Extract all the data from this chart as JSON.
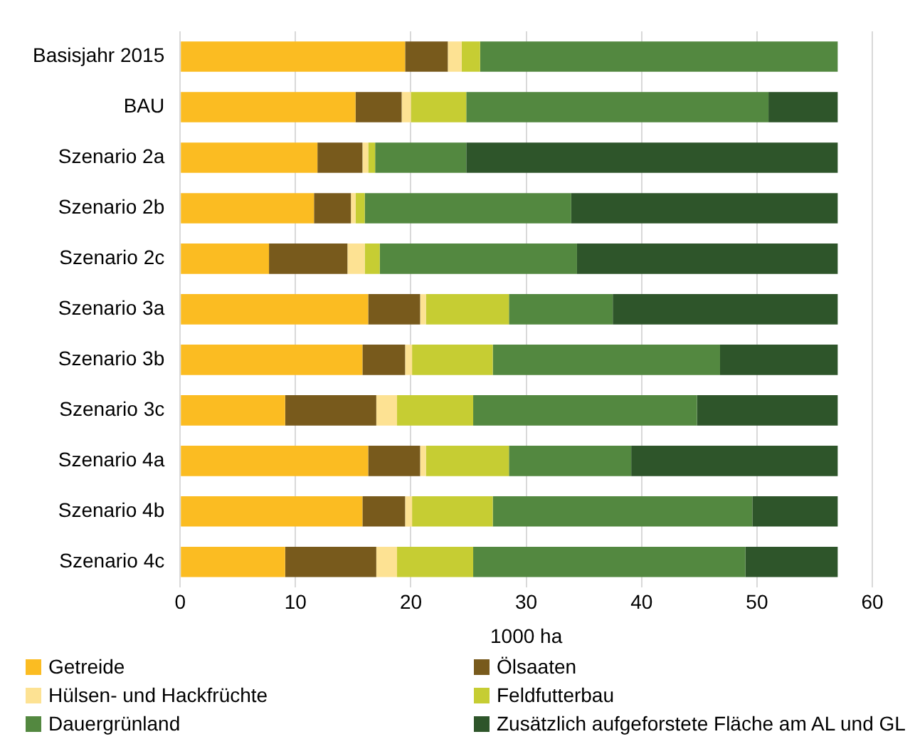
{
  "chart_data": {
    "type": "bar",
    "orientation": "horizontal",
    "stacked": true,
    "xlabel": "1000 ha",
    "categories": [
      "Basisjahr 2015",
      "BAU",
      "Szenario 2a",
      "Szenario 2b",
      "Szenario 2c",
      "Szenario 3a",
      "Szenario 3b",
      "Szenario 3c",
      "Szenario 4a",
      "Szenario 4b",
      "Szenario 4c"
    ],
    "series": [
      {
        "name": "Getreide",
        "color": "#fbbc22",
        "values": [
          19.5,
          15.2,
          11.9,
          11.6,
          7.7,
          16.3,
          15.8,
          9.1,
          16.3,
          15.8,
          9.1
        ]
      },
      {
        "name": "Ölsaaten",
        "color": "#785a1c",
        "values": [
          3.7,
          4.0,
          3.9,
          3.2,
          6.8,
          4.5,
          3.7,
          7.9,
          4.5,
          3.7,
          7.9
        ]
      },
      {
        "name": "Hülsen- und Hackfrüchte",
        "color": "#fde293",
        "values": [
          1.2,
          0.8,
          0.5,
          0.4,
          1.5,
          0.5,
          0.6,
          1.8,
          0.5,
          0.6,
          1.8
        ]
      },
      {
        "name": "Feldfutterbau",
        "color": "#c6cd33",
        "values": [
          1.6,
          4.8,
          0.6,
          0.8,
          1.3,
          7.2,
          7.0,
          6.6,
          7.2,
          7.0,
          6.6
        ]
      },
      {
        "name": "Dauergrünland",
        "color": "#538840",
        "values": [
          31.0,
          26.2,
          7.9,
          17.9,
          17.1,
          9.0,
          19.7,
          19.4,
          10.6,
          22.5,
          23.6
        ]
      },
      {
        "name": "Zusätzlich aufgeforstete Fläche am AL und GL",
        "color": "#2e552a",
        "values": [
          0,
          6.0,
          32.2,
          23.1,
          22.6,
          19.5,
          10.2,
          12.2,
          17.9,
          7.4,
          8.0
        ]
      }
    ],
    "xlim": [
      0,
      60
    ],
    "xticks": [
      0,
      10,
      20,
      30,
      40,
      50,
      60
    ],
    "grid": "x",
    "legend": "bottom"
  }
}
